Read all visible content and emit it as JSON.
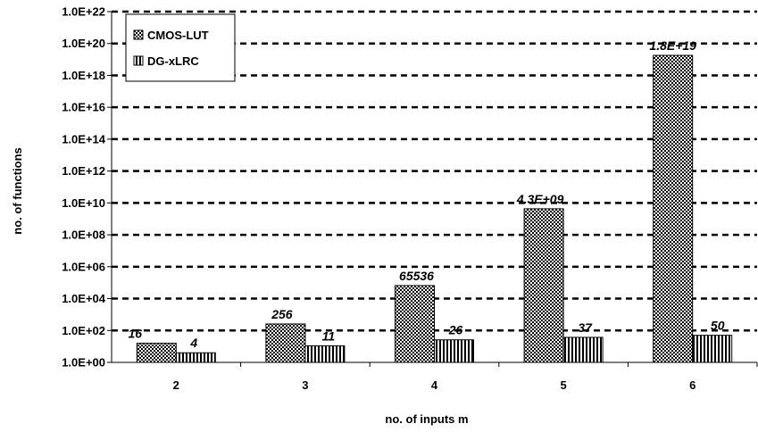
{
  "chart_data": {
    "type": "bar",
    "xlabel": "no. of inputs m",
    "ylabel": "no. of functions",
    "categories": [
      "2",
      "3",
      "4",
      "5",
      "6"
    ],
    "y_scale": "log",
    "ylim": [
      1,
      1e+22
    ],
    "y_ticks": [
      "1.0E+00",
      "1.0E+02",
      "1.0E+04",
      "1.0E+06",
      "1.0E+08",
      "1.0E+10",
      "1.0E+12",
      "1.0E+14",
      "1.0E+16",
      "1.0E+18",
      "1.0E+20",
      "1.0E+22"
    ],
    "grid": "horizontal dashed",
    "legend_position": "top-left",
    "series": [
      {
        "name": "CMOS-LUT",
        "values": [
          16,
          256,
          65536,
          4300000000.0,
          1.8e+19
        ],
        "data_labels": [
          "16",
          "256",
          "65536",
          "4.3E+09",
          "1.8E+19"
        ],
        "pattern": "checkered"
      },
      {
        "name": "DG-xLRC",
        "values": [
          4,
          11,
          26,
          37,
          50
        ],
        "data_labels": [
          "4",
          "11",
          "26",
          "37",
          "50"
        ],
        "pattern": "vertical-stripes"
      }
    ]
  }
}
